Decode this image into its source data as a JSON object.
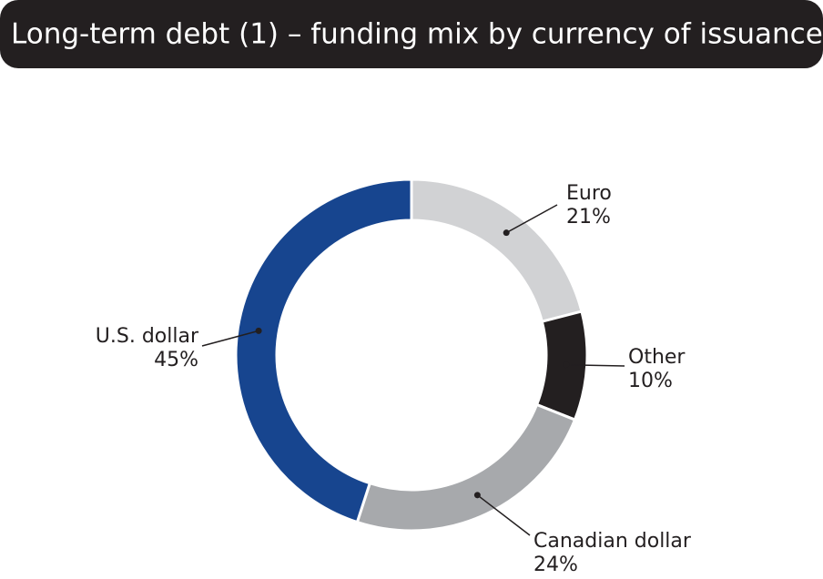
{
  "chart_data": {
    "type": "pie",
    "title": "Long-term debt (1) – funding mix by currency of issuance",
    "categories": [
      "Euro",
      "Other",
      "Canadian dollar",
      "U.S. dollar"
    ],
    "values": [
      21,
      10,
      24,
      45
    ],
    "value_labels": [
      "21%",
      "10%",
      "24%",
      "45%"
    ],
    "colors": [
      "#d1d2d4",
      "#231f20",
      "#a7a9ac",
      "#17458f"
    ]
  }
}
